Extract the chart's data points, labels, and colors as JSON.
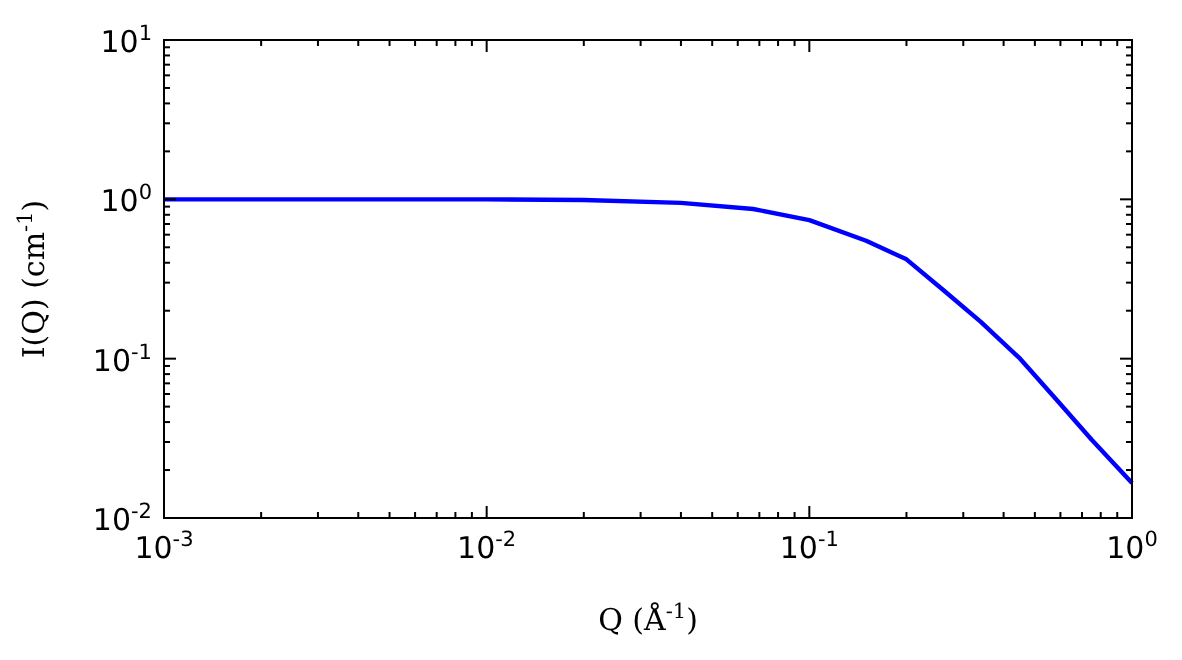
{
  "chart_data": {
    "type": "line",
    "xlabel": "Q (Å$^{-1}$)",
    "ylabel": "I(Q) (cm$^{-1}$)",
    "log": "xy",
    "grid": false,
    "marker": "none",
    "line_style": "solid",
    "xlim": [
      0.001,
      1
    ],
    "ylim": [
      0.01,
      10
    ],
    "xticks": [
      {
        "value": 0.001,
        "label": "10$^{-3}$"
      },
      {
        "value": 0.002,
        "label": null
      },
      {
        "value": 0.003,
        "label": null
      },
      {
        "value": 0.004,
        "label": null
      },
      {
        "value": 0.005,
        "label": null
      },
      {
        "value": 0.006,
        "label": null
      },
      {
        "value": 0.007,
        "label": null
      },
      {
        "value": 0.008,
        "label": null
      },
      {
        "value": 0.009,
        "label": null
      },
      {
        "value": 0.01,
        "label": "10$^{-2}$"
      },
      {
        "value": 0.02,
        "label": null
      },
      {
        "value": 0.03,
        "label": null
      },
      {
        "value": 0.04,
        "label": null
      },
      {
        "value": 0.05,
        "label": null
      },
      {
        "value": 0.06,
        "label": null
      },
      {
        "value": 0.07,
        "label": null
      },
      {
        "value": 0.08,
        "label": null
      },
      {
        "value": 0.09,
        "label": null
      },
      {
        "value": 0.1,
        "label": "10$^{-1}$"
      },
      {
        "value": 0.2,
        "label": null
      },
      {
        "value": 0.3,
        "label": null
      },
      {
        "value": 0.4,
        "label": null
      },
      {
        "value": 0.5,
        "label": null
      },
      {
        "value": 0.6,
        "label": null
      },
      {
        "value": 0.7,
        "label": null
      },
      {
        "value": 0.8,
        "label": null
      },
      {
        "value": 0.9,
        "label": null
      },
      {
        "value": 1,
        "label": "10$^{0}$"
      }
    ],
    "yticks": [
      {
        "value": 0.01,
        "label": "10$^{-2}$"
      },
      {
        "value": 0.02,
        "label": null
      },
      {
        "value": 0.03,
        "label": null
      },
      {
        "value": 0.04,
        "label": null
      },
      {
        "value": 0.05,
        "label": null
      },
      {
        "value": 0.06,
        "label": null
      },
      {
        "value": 0.07,
        "label": null
      },
      {
        "value": 0.08,
        "label": null
      },
      {
        "value": 0.09,
        "label": null
      },
      {
        "value": 0.1,
        "label": "10$^{-1}$"
      },
      {
        "value": 0.2,
        "label": null
      },
      {
        "value": 0.3,
        "label": null
      },
      {
        "value": 0.4,
        "label": null
      },
      {
        "value": 0.5,
        "label": null
      },
      {
        "value": 0.6,
        "label": null
      },
      {
        "value": 0.7,
        "label": null
      },
      {
        "value": 0.8,
        "label": null
      },
      {
        "value": 0.9,
        "label": null
      },
      {
        "value": 1,
        "label": "10$^{0}$"
      },
      {
        "value": 2,
        "label": null
      },
      {
        "value": 3,
        "label": null
      },
      {
        "value": 4,
        "label": null
      },
      {
        "value": 5,
        "label": null
      },
      {
        "value": 6,
        "label": null
      },
      {
        "value": 7,
        "label": null
      },
      {
        "value": 8,
        "label": null
      },
      {
        "value": 9,
        "label": null
      },
      {
        "value": 10,
        "label": "10$^{1}$"
      }
    ],
    "series": [
      {
        "color": "#0000ff",
        "x": [
          0.001,
          0.003,
          0.01,
          0.02,
          0.04,
          0.067,
          0.1,
          0.15,
          0.2,
          0.26,
          0.34,
          0.45,
          0.58,
          0.75,
          1
        ],
        "values": [
          1,
          1,
          1,
          0.99,
          0.95,
          0.87,
          0.74,
          0.55,
          0.42,
          0.27,
          0.17,
          0.1,
          0.056,
          0.031,
          0.0166
        ]
      }
    ]
  }
}
